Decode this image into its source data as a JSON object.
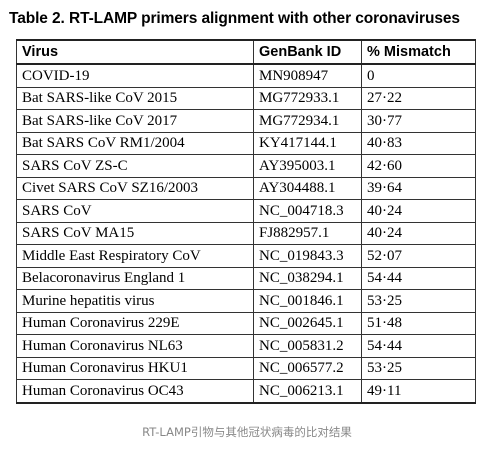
{
  "title": "Table 2. RT-LAMP primers alignment with other coronaviruses",
  "headers": [
    "Virus",
    "GenBank ID",
    "% Mismatch"
  ],
  "rows": [
    [
      "COVID-19",
      "MN908947",
      "0"
    ],
    [
      "Bat SARS-like CoV 2015",
      "MG772933.1",
      "27·22"
    ],
    [
      "Bat SARS-like CoV 2017",
      "MG772934.1",
      "30·77"
    ],
    [
      "Bat SARS CoV RM1/2004",
      "KY417144.1",
      "40·83"
    ],
    [
      "SARS CoV ZS-C",
      "AY395003.1",
      "42·60"
    ],
    [
      "Civet SARS CoV SZ16/2003",
      "AY304488.1",
      "39·64"
    ],
    [
      "SARS CoV",
      "NC_004718.3",
      "40·24"
    ],
    [
      "SARS CoV MA15",
      "FJ882957.1",
      "40·24"
    ],
    [
      "Middle East Respiratory CoV",
      "NC_019843.3",
      "52·07"
    ],
    [
      "Belacoronavirus England 1",
      "NC_038294.1",
      "54·44"
    ],
    [
      "Murine hepatitis virus",
      "NC_001846.1",
      "53·25"
    ],
    [
      "Human Coronavirus 229E",
      "NC_002645.1",
      "51·48"
    ],
    [
      "Human Coronavirus NL63",
      "NC_005831.2",
      "54·44"
    ],
    [
      "Human Coronavirus HKU1",
      "NC_006577.2",
      "53·25"
    ],
    [
      "Human Coronavirus OC43",
      "NC_006213.1",
      "49·11"
    ]
  ],
  "caption": "RT-LAMP引物与其他冠状病毒的比对结果"
}
